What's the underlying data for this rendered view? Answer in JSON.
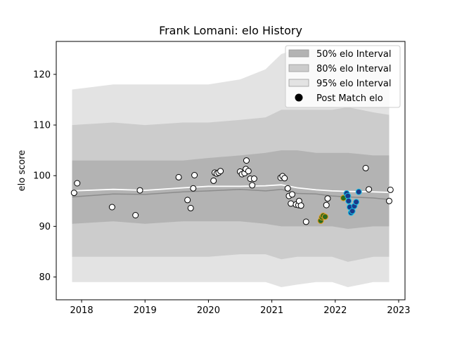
{
  "chart_data": {
    "type": "scatter",
    "title": "Frank Lomani: elo History",
    "xlabel": "",
    "ylabel": "elo score",
    "xlim": [
      2017.6,
      2023.1
    ],
    "ylim": [
      75.5,
      126.5
    ],
    "x_ticks": [
      2018,
      2019,
      2020,
      2021,
      2022,
      2023
    ],
    "y_ticks": [
      80,
      90,
      100,
      110,
      120
    ],
    "grid": false,
    "legend_position": "top-right",
    "legend": [
      {
        "key": "band50",
        "label": "50% elo Interval"
      },
      {
        "key": "band80",
        "label": "80% elo Interval"
      },
      {
        "key": "band95",
        "label": "95% elo Interval"
      },
      {
        "key": "points",
        "label": "Post Match elo"
      }
    ],
    "colors": {
      "band50": "#b3b3b3",
      "band80": "#cccccc",
      "band95": "#e3e3e3",
      "mean_line": "#ffffff",
      "median_line": "#8c8c8c",
      "point_fill": "#ffffff",
      "point_edge": "#000000"
    },
    "bands": {
      "x": [
        2017.85,
        2018.5,
        2019.0,
        2019.6,
        2020.0,
        2020.5,
        2020.9,
        2021.15,
        2021.4,
        2021.7,
        2021.95,
        2022.2,
        2022.6,
        2022.85
      ],
      "upper95": [
        117.0,
        118.0,
        118.0,
        118.0,
        118.0,
        119.0,
        121.0,
        124.0,
        125.0,
        125.0,
        124.0,
        125.0,
        124.0,
        124.0
      ],
      "lower95": [
        79.0,
        79.0,
        79.0,
        79.0,
        79.0,
        79.0,
        79.0,
        78.0,
        78.5,
        79.0,
        79.0,
        78.0,
        79.0,
        79.0
      ],
      "upper80": [
        110.0,
        110.5,
        110.0,
        110.5,
        110.5,
        111.0,
        111.5,
        113.0,
        113.0,
        113.0,
        113.0,
        113.5,
        112.5,
        112.0
      ],
      "lower80": [
        84.0,
        84.0,
        84.0,
        84.0,
        84.0,
        84.5,
        84.5,
        83.5,
        84.0,
        84.0,
        84.0,
        83.0,
        84.0,
        84.0
      ],
      "upper50": [
        103.0,
        103.0,
        103.0,
        103.0,
        103.5,
        104.0,
        104.5,
        105.0,
        105.0,
        104.5,
        104.5,
        104.5,
        104.0,
        104.0
      ],
      "lower50": [
        90.5,
        91.0,
        90.5,
        91.0,
        91.0,
        91.0,
        90.5,
        90.0,
        90.0,
        90.0,
        90.0,
        89.5,
        90.0,
        90.0
      ],
      "mean": [
        97.0,
        97.3,
        97.1,
        97.6,
        97.9,
        97.9,
        98.0,
        98.2,
        97.6,
        97.2,
        97.0,
        96.9,
        96.8,
        96.7
      ],
      "median": [
        95.8,
        96.4,
        96.3,
        96.8,
        97.0,
        97.3,
        97.0,
        97.3,
        96.5,
        96.4,
        96.0,
        95.8,
        95.6,
        95.3
      ]
    },
    "points": [
      {
        "x": 2017.88,
        "y": 96.6,
        "c": "w"
      },
      {
        "x": 2017.93,
        "y": 98.5,
        "c": "w"
      },
      {
        "x": 2018.48,
        "y": 93.8,
        "c": "w"
      },
      {
        "x": 2018.85,
        "y": 92.2,
        "c": "w"
      },
      {
        "x": 2018.92,
        "y": 97.1,
        "c": "w"
      },
      {
        "x": 2019.53,
        "y": 99.7,
        "c": "w"
      },
      {
        "x": 2019.67,
        "y": 95.2,
        "c": "w"
      },
      {
        "x": 2019.72,
        "y": 93.6,
        "c": "w"
      },
      {
        "x": 2019.76,
        "y": 97.5,
        "c": "w"
      },
      {
        "x": 2019.78,
        "y": 100.1,
        "c": "w"
      },
      {
        "x": 2020.08,
        "y": 99.0,
        "c": "w"
      },
      {
        "x": 2020.1,
        "y": 100.6,
        "c": "w"
      },
      {
        "x": 2020.13,
        "y": 100.4,
        "c": "w"
      },
      {
        "x": 2020.16,
        "y": 100.6,
        "c": "w"
      },
      {
        "x": 2020.19,
        "y": 100.9,
        "c": "w"
      },
      {
        "x": 2020.5,
        "y": 100.8,
        "c": "w"
      },
      {
        "x": 2020.53,
        "y": 100.3,
        "c": "w"
      },
      {
        "x": 2020.57,
        "y": 100.5,
        "c": "w"
      },
      {
        "x": 2020.59,
        "y": 101.3,
        "c": "w"
      },
      {
        "x": 2020.6,
        "y": 103.0,
        "c": "w"
      },
      {
        "x": 2020.63,
        "y": 100.9,
        "c": "w"
      },
      {
        "x": 2020.66,
        "y": 99.4,
        "c": "w"
      },
      {
        "x": 2020.69,
        "y": 98.1,
        "c": "w"
      },
      {
        "x": 2020.72,
        "y": 99.4,
        "c": "w"
      },
      {
        "x": 2021.14,
        "y": 99.6,
        "c": "w"
      },
      {
        "x": 2021.17,
        "y": 99.9,
        "c": "w"
      },
      {
        "x": 2021.2,
        "y": 99.5,
        "c": "w"
      },
      {
        "x": 2021.25,
        "y": 97.5,
        "c": "w"
      },
      {
        "x": 2021.27,
        "y": 96.0,
        "c": "w"
      },
      {
        "x": 2021.3,
        "y": 94.5,
        "c": "w"
      },
      {
        "x": 2021.32,
        "y": 96.3,
        "c": "w"
      },
      {
        "x": 2021.38,
        "y": 94.3,
        "c": "w"
      },
      {
        "x": 2021.42,
        "y": 94.2,
        "c": "w"
      },
      {
        "x": 2021.43,
        "y": 95.0,
        "c": "w"
      },
      {
        "x": 2021.46,
        "y": 94.1,
        "c": "w"
      },
      {
        "x": 2021.54,
        "y": 90.9,
        "c": "w"
      },
      {
        "x": 2021.77,
        "y": 91.1,
        "c": "o"
      },
      {
        "x": 2021.79,
        "y": 91.8,
        "c": "o"
      },
      {
        "x": 2021.81,
        "y": 92.1,
        "c": "o"
      },
      {
        "x": 2021.84,
        "y": 91.9,
        "c": "o"
      },
      {
        "x": 2021.86,
        "y": 94.2,
        "c": "w"
      },
      {
        "x": 2021.88,
        "y": 95.5,
        "c": "w"
      },
      {
        "x": 2022.13,
        "y": 95.6,
        "c": "o"
      },
      {
        "x": 2022.18,
        "y": 96.5,
        "c": "b"
      },
      {
        "x": 2022.2,
        "y": 96.0,
        "c": "b"
      },
      {
        "x": 2022.21,
        "y": 95.0,
        "c": "b"
      },
      {
        "x": 2022.23,
        "y": 93.8,
        "c": "b"
      },
      {
        "x": 2022.25,
        "y": 92.7,
        "c": "b"
      },
      {
        "x": 2022.27,
        "y": 93.0,
        "c": "b"
      },
      {
        "x": 2022.3,
        "y": 94.0,
        "c": "b"
      },
      {
        "x": 2022.33,
        "y": 94.8,
        "c": "b"
      },
      {
        "x": 2022.37,
        "y": 96.8,
        "c": "b"
      },
      {
        "x": 2022.48,
        "y": 101.5,
        "c": "w"
      },
      {
        "x": 2022.53,
        "y": 97.3,
        "c": "w"
      },
      {
        "x": 2022.85,
        "y": 95.0,
        "c": "w"
      },
      {
        "x": 2022.87,
        "y": 97.2,
        "c": "w"
      }
    ],
    "point_colors": {
      "w": {
        "fill": "#ffffff",
        "edge": "#000000"
      },
      "o": {
        "fill": "#2e6b1f",
        "edge": "#e69a1a"
      },
      "b": {
        "fill": "#1a3a8a",
        "edge": "#19c4e6"
      }
    }
  }
}
